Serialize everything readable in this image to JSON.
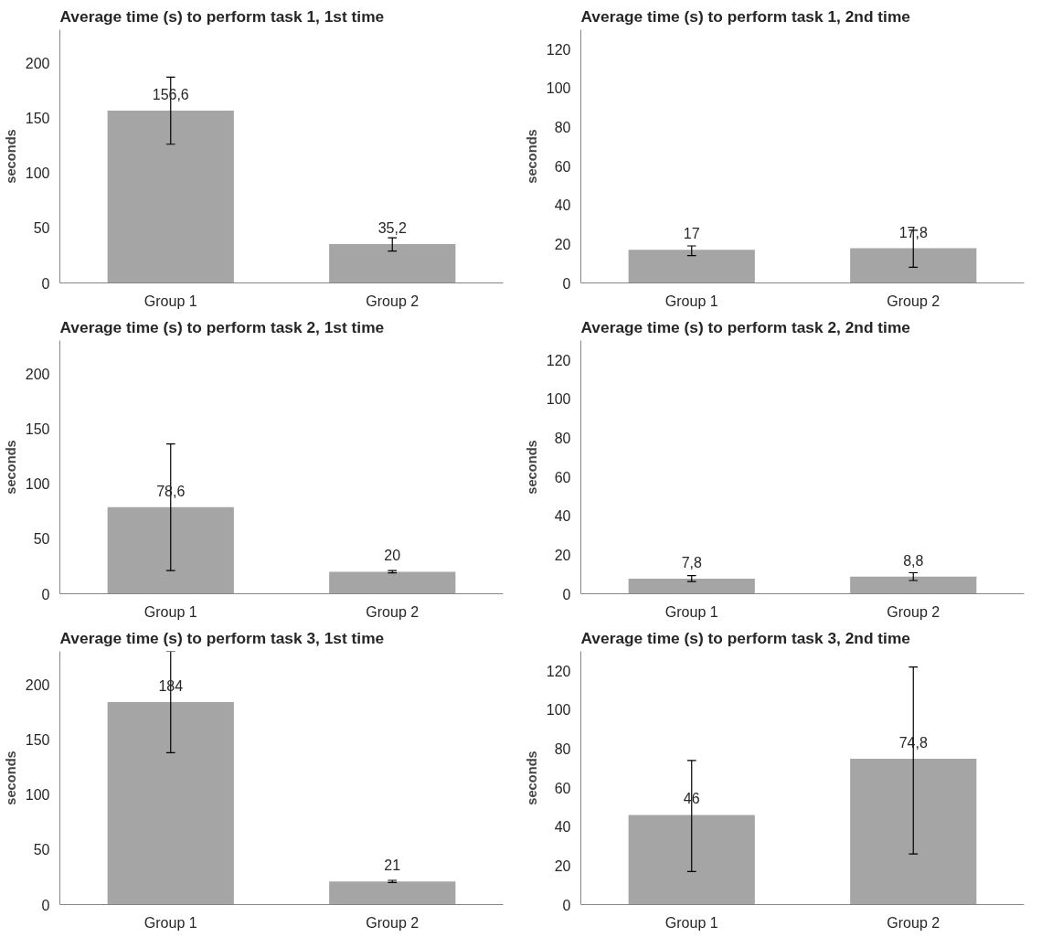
{
  "chart_data": [
    {
      "type": "bar",
      "title": "Average time (s) to perform task 1, 1st time",
      "ylabel": "seconds",
      "categories": [
        "Group 1",
        "Group 2"
      ],
      "values": [
        156.6,
        35.2
      ],
      "value_labels": [
        "156,6",
        "35,2"
      ],
      "errors": [
        [
          126,
          187
        ],
        [
          29,
          41
        ]
      ],
      "color": "#a5a5a5",
      "ylim": [
        0,
        230
      ],
      "yticks": [
        0,
        50,
        100,
        150,
        200
      ],
      "grid": false
    },
    {
      "type": "bar",
      "title": "Average time (s) to perform task 1, 2nd time",
      "ylabel": "seconds",
      "categories": [
        "Group 1",
        "Group 2"
      ],
      "values": [
        17,
        17.8
      ],
      "value_labels": [
        "17",
        "17,8"
      ],
      "errors": [
        [
          14,
          19
        ],
        [
          8,
          27
        ]
      ],
      "color": "#a5a5a5",
      "ylim": [
        0,
        130
      ],
      "yticks": [
        0,
        20,
        40,
        60,
        80,
        100,
        120
      ],
      "grid": false
    },
    {
      "type": "bar",
      "title": "Average time (s) to perform task 2, 1st time",
      "ylabel": "seconds",
      "categories": [
        "Group 1",
        "Group 2"
      ],
      "values": [
        78.6,
        20
      ],
      "value_labels": [
        "78,6",
        "20"
      ],
      "errors": [
        [
          21,
          136
        ],
        1
      ],
      "color": "#a5a5a5",
      "ylim": [
        0,
        230
      ],
      "yticks": [
        0,
        50,
        100,
        150,
        200
      ],
      "grid": false
    },
    {
      "type": "bar",
      "title": "Average time (s) to perform task 2, 2nd time",
      "ylabel": "seconds",
      "categories": [
        "Group 1",
        "Group 2"
      ],
      "values": [
        7.8,
        8.8
      ],
      "value_labels": [
        "7,8",
        "8,8"
      ],
      "errors": [
        1.5,
        2
      ],
      "color": "#a5a5a5",
      "ylim": [
        0,
        130
      ],
      "yticks": [
        0,
        20,
        40,
        60,
        80,
        100,
        120
      ],
      "grid": false
    },
    {
      "type": "bar",
      "title": "Average time (s) to perform task 3, 1st time",
      "ylabel": "seconds",
      "categories": [
        "Group 1",
        "Group 2"
      ],
      "values": [
        184,
        21
      ],
      "value_labels": [
        "184",
        "21"
      ],
      "errors": [
        [
          138,
          230
        ],
        1
      ],
      "color": "#a5a5a5",
      "ylim": [
        0,
        230
      ],
      "yticks": [
        0,
        50,
        100,
        150,
        200
      ],
      "grid": false
    },
    {
      "type": "bar",
      "title": "Average time (s) to perform task 3, 2nd time",
      "ylabel": "seconds",
      "categories": [
        "Group 1",
        "Group 2"
      ],
      "values": [
        46,
        74.8
      ],
      "value_labels": [
        "46",
        "74,8"
      ],
      "errors": [
        [
          17,
          74
        ],
        [
          26,
          122
        ]
      ],
      "color": "#a5a5a5",
      "ylim": [
        0,
        130
      ],
      "yticks": [
        0,
        20,
        40,
        60,
        80,
        100,
        120
      ],
      "grid": false
    }
  ]
}
